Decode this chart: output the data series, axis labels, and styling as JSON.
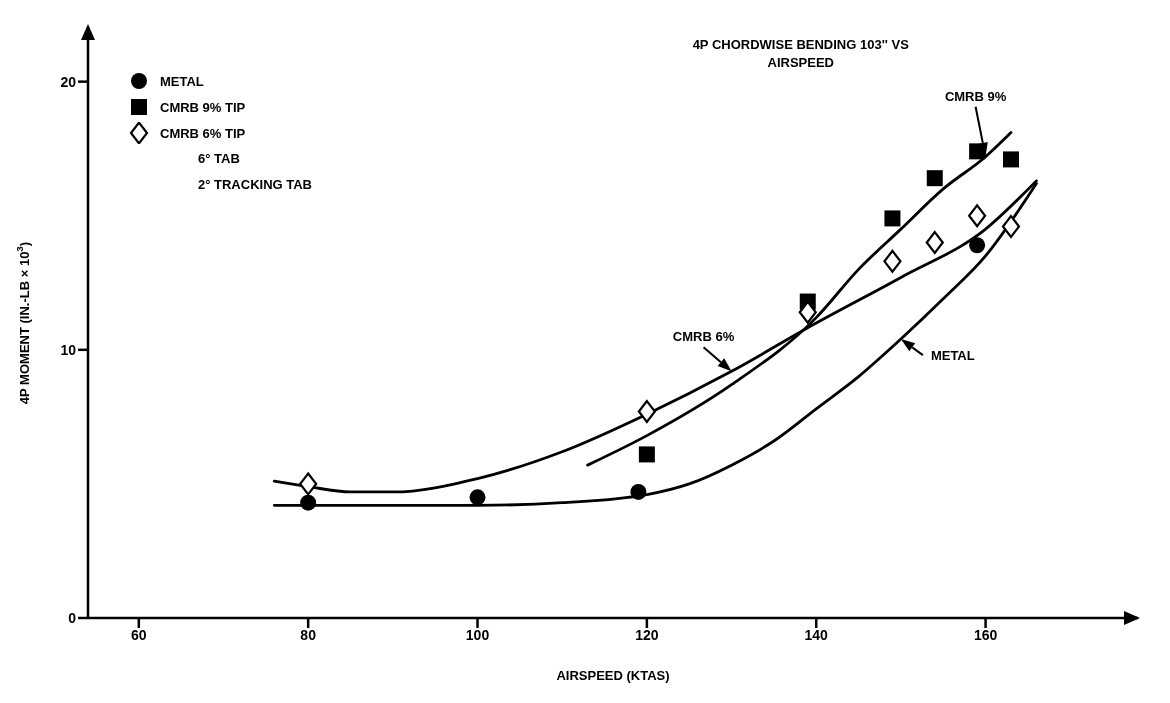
{
  "chart_data": {
    "type": "scatter",
    "title": "4P CHORDWISE BENDING 103'' VS AIRSPEED",
    "xlabel": "AIRSPEED (KTAS)",
    "ylabel": "4P MOMENT (IN.-LB × 10$^{3}$)",
    "xlim": [
      54,
      178
    ],
    "ylim": [
      0,
      22
    ],
    "xticks": [
      60,
      80,
      100,
      120,
      140,
      160
    ],
    "yticks": [
      0,
      10,
      20
    ],
    "grid": false,
    "legend": "top left",
    "annotations": [
      "6° TAB",
      "2° TRACKING TAB"
    ],
    "series": [
      {
        "name": "METAL",
        "marker": "circle",
        "color": "#000000",
        "x": [
          80,
          100,
          119,
          159
        ],
        "values": [
          4.3,
          4.5,
          4.7,
          13.9
        ]
      },
      {
        "name": "CMRB 9% TIP",
        "marker": "square",
        "color": "#000000",
        "x": [
          120,
          139,
          149,
          154,
          159,
          163
        ],
        "values": [
          6.1,
          11.8,
          14.9,
          16.4,
          17.4,
          17.1
        ]
      },
      {
        "name": "CMRB 6% TIP",
        "marker": "diamond",
        "color": "#000000",
        "x": [
          80,
          120,
          139,
          149,
          154,
          159,
          163
        ],
        "values": [
          5.0,
          7.7,
          11.4,
          13.3,
          14.0,
          15.0,
          14.6
        ]
      },
      {
        "name": "METAL",
        "type": "line",
        "marker": "none",
        "color": "#000000",
        "x": [
          76,
          90,
          100,
          110,
          120,
          125,
          130,
          135,
          140,
          145,
          150,
          155,
          160,
          166
        ],
        "values": [
          4.2,
          4.2,
          4.2,
          4.3,
          4.6,
          5.0,
          5.7,
          6.6,
          7.8,
          9.0,
          10.4,
          11.9,
          13.5,
          16.2
        ]
      },
      {
        "name": "CMRB 6%",
        "type": "line",
        "marker": "none",
        "color": "#000000",
        "x": [
          76,
          80,
          85,
          90,
          100,
          110,
          120,
          130,
          140,
          150,
          160,
          166
        ],
        "values": [
          5.1,
          4.9,
          4.7,
          4.7,
          5.2,
          6.2,
          7.6,
          9.2,
          11.0,
          12.7,
          14.5,
          16.3
        ]
      },
      {
        "name": "CMRB 9%",
        "type": "line",
        "marker": "none",
        "color": "#000000",
        "x": [
          113,
          120,
          130,
          140,
          145,
          150,
          155,
          160,
          163
        ],
        "values": [
          5.7,
          6.8,
          8.7,
          11.2,
          13.0,
          14.5,
          16.0,
          17.2,
          18.1
        ]
      }
    ]
  }
}
